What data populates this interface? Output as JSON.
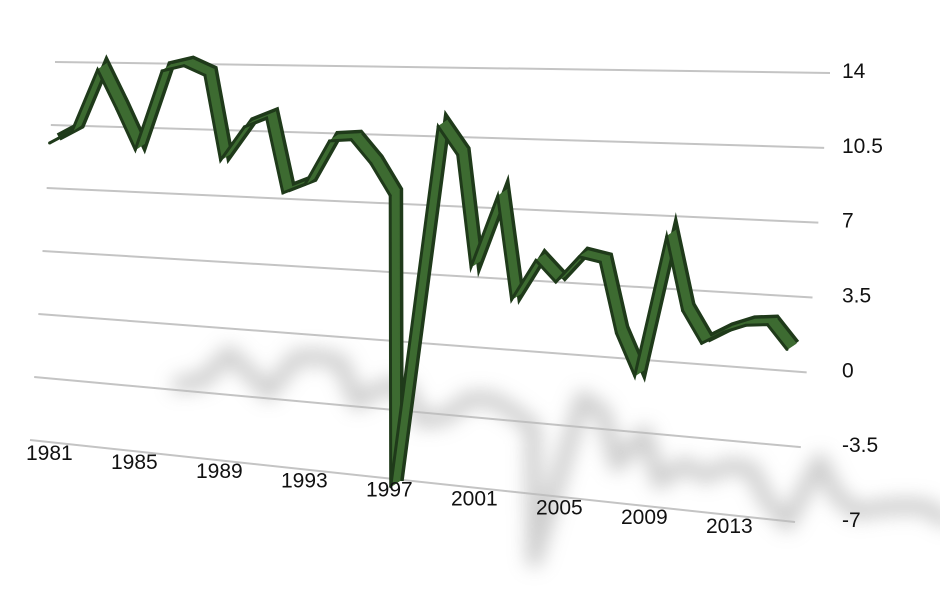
{
  "chart_data": {
    "type": "line",
    "title": "",
    "xlabel": "",
    "ylabel": "",
    "x": [
      1981,
      1982,
      1983,
      1984,
      1985,
      1986,
      1987,
      1988,
      1989,
      1990,
      1991,
      1992,
      1993,
      1994,
      1995,
      1996,
      1997,
      1998,
      1999,
      2000,
      2001,
      2002,
      2003,
      2004,
      2005,
      2006,
      2007,
      2008,
      2009,
      2010,
      2011,
      2012,
      2013,
      2014,
      2015,
      2016,
      2017
    ],
    "x_tick_labels": [
      "1981",
      "1985",
      "1989",
      "1993",
      "1997",
      "2001",
      "2005",
      "2009",
      "2013"
    ],
    "y_tick_labels": [
      "14",
      "10.5",
      "7",
      "3.5",
      "0",
      "-3.5",
      "-7"
    ],
    "ylim": [
      -7,
      14
    ],
    "grid": true,
    "series": [
      {
        "values": [
          9.5,
          10.2,
          13.6,
          11.5,
          9.3,
          13.6,
          13.9,
          13.4,
          8.9,
          10.7,
          11.2,
          7.3,
          7.8,
          10.1,
          10.2,
          9.0,
          7.4,
          -7.4,
          11.0,
          9.6,
          4.0,
          7.6,
          2.5,
          4.5,
          3.5,
          4.8,
          4.6,
          1.2,
          -0.8,
          6.0,
          2.5,
          1.0,
          1.6,
          2.0,
          2.1,
          1.0,
          null
        ]
      }
    ],
    "colors": {
      "line": "#3d6b31",
      "line_dark": "#1f3a1a",
      "grid": "#c4c4c4",
      "shadow": "#bcbcbc"
    }
  }
}
